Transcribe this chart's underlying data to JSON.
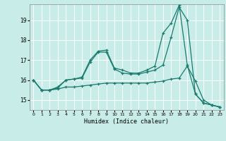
{
  "xlabel": "Humidex (Indice chaleur)",
  "bg_color": "#c8ece8",
  "grid_color": "#ffffff",
  "line_color": "#1a7a6e",
  "xlim": [
    -0.5,
    23.5
  ],
  "ylim": [
    14.5,
    19.8
  ],
  "yticks": [
    15,
    16,
    17,
    18,
    19
  ],
  "xticks": [
    0,
    1,
    2,
    3,
    4,
    5,
    6,
    7,
    8,
    9,
    10,
    11,
    12,
    13,
    14,
    15,
    16,
    17,
    18,
    19,
    20,
    21,
    22,
    23
  ],
  "series1_x": [
    0,
    1,
    2,
    3,
    4,
    5,
    6,
    7,
    8,
    9,
    10,
    11,
    12,
    13,
    14,
    15,
    16,
    17,
    18,
    19,
    20,
    21,
    22,
    23
  ],
  "series1_y": [
    16.0,
    15.5,
    15.5,
    15.6,
    16.0,
    16.05,
    16.1,
    16.9,
    17.4,
    17.4,
    16.55,
    16.35,
    16.3,
    16.3,
    16.4,
    16.5,
    16.75,
    18.15,
    19.65,
    19.0,
    15.3,
    14.85,
    14.75,
    14.65
  ],
  "series2_x": [
    0,
    1,
    2,
    3,
    4,
    5,
    6,
    7,
    8,
    9,
    10,
    11,
    12,
    13,
    14,
    15,
    16,
    17,
    18,
    19,
    20,
    21,
    22,
    23
  ],
  "series2_y": [
    16.0,
    15.5,
    15.5,
    15.65,
    16.0,
    16.05,
    16.15,
    17.0,
    17.45,
    17.5,
    16.6,
    16.5,
    16.35,
    16.35,
    16.5,
    16.7,
    18.35,
    18.85,
    19.75,
    16.75,
    15.3,
    14.85,
    14.75,
    14.65
  ],
  "series3_x": [
    0,
    1,
    2,
    3,
    4,
    5,
    6,
    7,
    8,
    9,
    10,
    11,
    12,
    13,
    14,
    15,
    16,
    17,
    18,
    19,
    20,
    21,
    22,
    23
  ],
  "series3_y": [
    16.0,
    15.5,
    15.5,
    15.55,
    15.65,
    15.65,
    15.7,
    15.75,
    15.8,
    15.85,
    15.85,
    15.85,
    15.85,
    15.85,
    15.85,
    15.9,
    15.95,
    16.05,
    16.1,
    16.7,
    15.95,
    15.0,
    14.75,
    14.65
  ]
}
